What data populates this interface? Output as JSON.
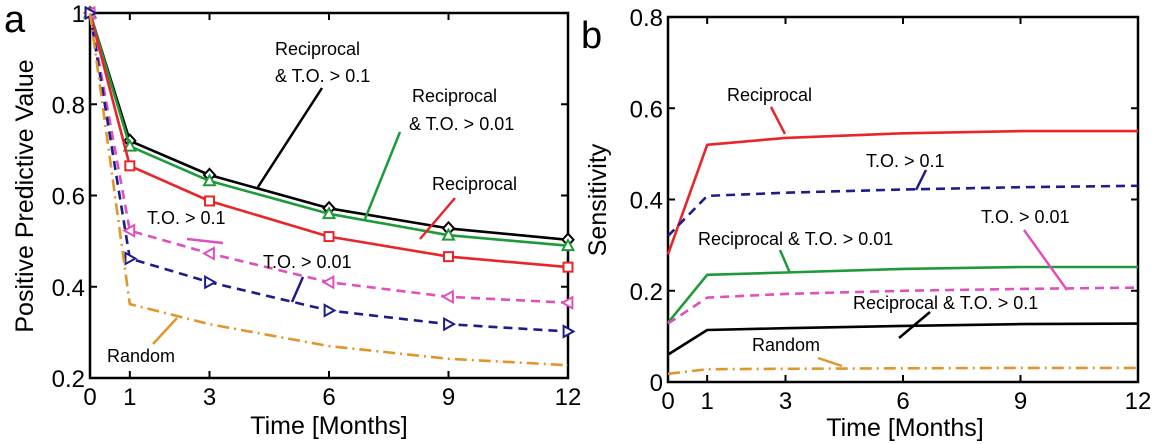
{
  "chart_data": [
    {
      "panel": "a",
      "type": "line",
      "xlabel": "Time [Months]",
      "ylabel": "Positive Predictive Value",
      "xlim": [
        0,
        12
      ],
      "ylim": [
        0.2,
        1
      ],
      "xticks": [
        0,
        1,
        3,
        6,
        9,
        12
      ],
      "yticks": [
        0.2,
        0.4,
        0.6,
        0.8,
        1
      ],
      "ytick_labels": [
        "0.2",
        "0.4",
        "0.6",
        "0.8",
        "1"
      ],
      "grid": false,
      "series": [
        {
          "name": "Reciprocal & T.O. > 0.1",
          "color": "#000000",
          "dash": "solid",
          "marker": "diamond",
          "x": [
            0,
            1,
            3,
            6,
            9,
            12
          ],
          "y": [
            1.0,
            0.72,
            0.645,
            0.572,
            0.528,
            0.503
          ]
        },
        {
          "name": "Reciprocal & T.O. > 0.01",
          "color": "#1f9a3a",
          "dash": "solid",
          "marker": "triangle-up",
          "x": [
            0,
            1,
            3,
            6,
            9,
            12
          ],
          "y": [
            1.0,
            0.708,
            0.632,
            0.56,
            0.513,
            0.49
          ]
        },
        {
          "name": "Reciprocal",
          "color": "#e8252b",
          "dash": "solid",
          "marker": "square",
          "x": [
            0,
            1,
            3,
            6,
            9,
            12
          ],
          "y": [
            1.0,
            0.665,
            0.588,
            0.51,
            0.466,
            0.443
          ]
        },
        {
          "name": "T.O. > 0.1",
          "color": "#e04fbe",
          "dash": "dash",
          "marker": "triangle-left",
          "x": [
            0,
            1,
            3,
            6,
            9,
            12
          ],
          "y": [
            1.0,
            0.523,
            0.473,
            0.41,
            0.378,
            0.365
          ]
        },
        {
          "name": "T.O. > 0.01",
          "color": "#1c1c8a",
          "dash": "dash",
          "marker": "triangle-right",
          "x": [
            0,
            1,
            3,
            6,
            9,
            12
          ],
          "y": [
            1.0,
            0.462,
            0.41,
            0.348,
            0.318,
            0.302
          ]
        },
        {
          "name": "Random",
          "color": "#e0962b",
          "dash": "dashdot",
          "marker": "none",
          "x": [
            0,
            1,
            3,
            6,
            9,
            12
          ],
          "y": [
            1.0,
            0.362,
            0.318,
            0.27,
            0.242,
            0.228
          ]
        }
      ],
      "annotations": [
        {
          "text_lines": [
            "Reciprocal",
            "& T.O. > 0.1"
          ],
          "series": "Reciprocal & T.O. > 0.1"
        },
        {
          "text_lines": [
            "Reciprocal",
            "& T.O. > 0.01"
          ],
          "series": "Reciprocal & T.O. > 0.01"
        },
        {
          "text_lines": [
            "Reciprocal"
          ],
          "series": "Reciprocal"
        },
        {
          "text_lines": [
            "T.O. > 0.1"
          ],
          "series": "T.O. > 0.1"
        },
        {
          "text_lines": [
            "T.O. > 0.01"
          ],
          "series": "T.O. > 0.01"
        },
        {
          "text_lines": [
            "Random"
          ],
          "series": "Random"
        }
      ]
    },
    {
      "panel": "b",
      "type": "line",
      "xlabel": "Time [Months]",
      "ylabel": "Sensitivity",
      "xlim": [
        0,
        12
      ],
      "ylim": [
        0,
        0.8
      ],
      "xticks": [
        0,
        1,
        3,
        6,
        9,
        12
      ],
      "yticks": [
        0,
        0.2,
        0.4,
        0.6,
        0.8
      ],
      "ytick_labels": [
        "0",
        "0.2",
        "0.4",
        "0.6",
        "0.8"
      ],
      "grid": false,
      "series": [
        {
          "name": "Reciprocal",
          "color": "#e8252b",
          "dash": "solid",
          "x": [
            0,
            1,
            3,
            6,
            9,
            12
          ],
          "y": [
            0.28,
            0.52,
            0.535,
            0.545,
            0.55,
            0.55
          ]
        },
        {
          "name": "T.O. > 0.1",
          "color": "#1c1c8a",
          "dash": "dash",
          "x": [
            0,
            1,
            3,
            6,
            9,
            12
          ],
          "y": [
            0.32,
            0.408,
            0.415,
            0.422,
            0.427,
            0.43
          ]
        },
        {
          "name": "Reciprocal & T.O. > 0.01",
          "color": "#1f9a3a",
          "dash": "solid",
          "x": [
            0,
            1,
            3,
            6,
            9,
            12
          ],
          "y": [
            0.13,
            0.235,
            0.24,
            0.248,
            0.252,
            0.252
          ]
        },
        {
          "name": "T.O. > 0.01",
          "color": "#e04fbe",
          "dash": "dash",
          "x": [
            0,
            1,
            3,
            6,
            9,
            12
          ],
          "y": [
            0.128,
            0.185,
            0.193,
            0.2,
            0.204,
            0.207
          ]
        },
        {
          "name": "Reciprocal & T.O. > 0.1",
          "color": "#000000",
          "dash": "solid",
          "x": [
            0,
            1,
            3,
            6,
            9,
            12
          ],
          "y": [
            0.06,
            0.114,
            0.118,
            0.123,
            0.127,
            0.128
          ]
        },
        {
          "name": "Random",
          "color": "#e0962b",
          "dash": "dashdot",
          "x": [
            0,
            1,
            3,
            6,
            9,
            12
          ],
          "y": [
            0.018,
            0.028,
            0.029,
            0.03,
            0.031,
            0.031
          ]
        }
      ],
      "annotations": [
        {
          "text_lines": [
            "Reciprocal"
          ],
          "series": "Reciprocal"
        },
        {
          "text_lines": [
            "T.O. > 0.1"
          ],
          "series": "T.O. > 0.1"
        },
        {
          "text_lines": [
            "Reciprocal & T.O. > 0.01"
          ],
          "series": "Reciprocal & T.O. > 0.01"
        },
        {
          "text_lines": [
            "T.O. > 0.01"
          ],
          "series": "T.O. > 0.01"
        },
        {
          "text_lines": [
            "Reciprocal & T.O. > 0.1"
          ],
          "series": "Reciprocal & T.O. > 0.1"
        },
        {
          "text_lines": [
            "Random"
          ],
          "series": "Random"
        }
      ]
    }
  ]
}
